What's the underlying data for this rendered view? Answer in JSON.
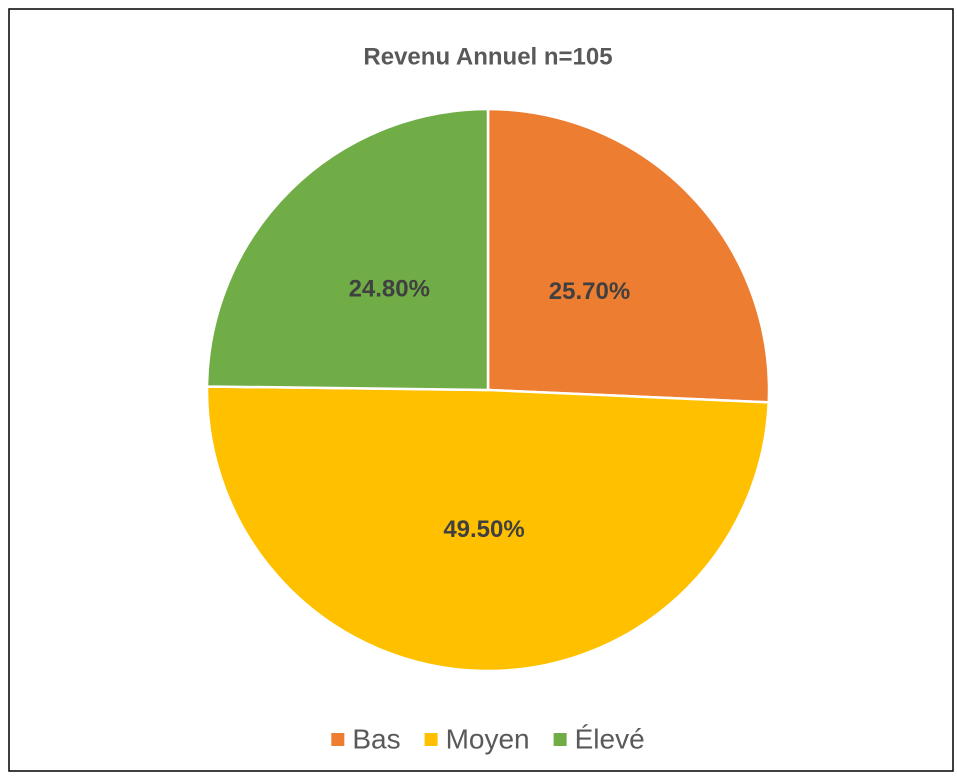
{
  "chart_data": {
    "type": "pie",
    "title": "Revenu Annuel n=105",
    "categories": [
      "Bas",
      "Moyen",
      "Élevé"
    ],
    "values": [
      25.7,
      49.5,
      24.8
    ],
    "value_labels": [
      "25.70%",
      "49.50%",
      "24.80%"
    ],
    "colors": [
      "#ED7D31",
      "#FFC000",
      "#70AD47"
    ],
    "legend": "bottom"
  }
}
